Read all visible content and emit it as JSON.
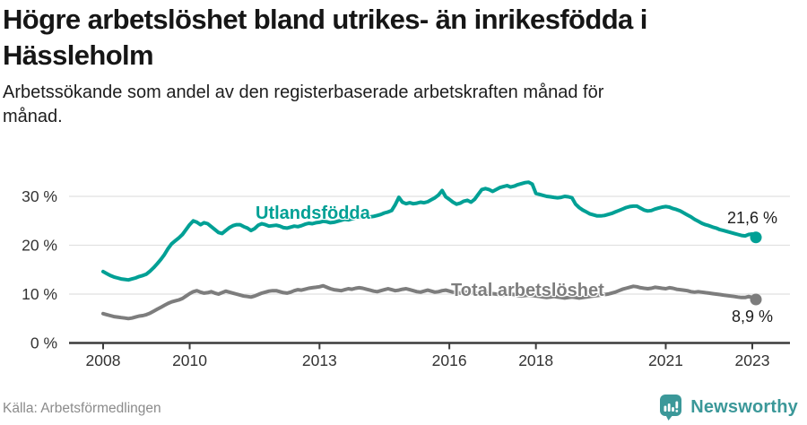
{
  "header": {
    "title": "Högre arbetslöshet bland utrikes- än inrikesfödda i\nHässleholm",
    "subtitle": "Arbetssökande som andel av den registerbaserade arbetskraften månad för\nmånad."
  },
  "footer": {
    "source": "Källa: Arbetsförmedlingen",
    "brand": "Newsworthy",
    "brand_color": "#3b9899"
  },
  "chart_data": {
    "type": "line",
    "title": "Högre arbetslöshet bland utrikes- än inrikesfödda i Hässleholm",
    "unit": "%",
    "x_start": "2008-01",
    "x_end": "2023-02",
    "months_per_point": 1,
    "ylim": [
      0,
      35
    ],
    "grid": "horizontal",
    "y_ticks": [
      {
        "value": 0,
        "label": "0 %"
      },
      {
        "value": 10,
        "label": "10 %"
      },
      {
        "value": 20,
        "label": "20 %"
      },
      {
        "value": 30,
        "label": "30 %"
      }
    ],
    "x_ticks": [
      {
        "month_index": 0,
        "label": "2008"
      },
      {
        "month_index": 24,
        "label": "2010"
      },
      {
        "month_index": 60,
        "label": "2013"
      },
      {
        "month_index": 96,
        "label": "2016"
      },
      {
        "month_index": 120,
        "label": "2018"
      },
      {
        "month_index": 156,
        "label": "2021"
      },
      {
        "month_index": 180,
        "label": "2023"
      }
    ],
    "series": [
      {
        "name": "Utlandsfödda",
        "color": "#00a095",
        "end_label": "21,6 %",
        "end_value": 21.6,
        "values": [
          14.6,
          14.2,
          13.8,
          13.5,
          13.3,
          13.1,
          13.0,
          12.9,
          13.1,
          13.3,
          13.6,
          13.8,
          14.1,
          14.7,
          15.4,
          16.2,
          17.1,
          18.1,
          19.3,
          20.3,
          20.9,
          21.5,
          22.2,
          23.2,
          24.2,
          25.0,
          24.7,
          24.2,
          24.6,
          24.4,
          23.8,
          23.2,
          22.6,
          22.4,
          23.0,
          23.6,
          24.0,
          24.2,
          24.2,
          23.8,
          23.5,
          23.0,
          23.4,
          24.1,
          24.4,
          24.2,
          23.9,
          24.0,
          24.1,
          23.9,
          23.6,
          23.5,
          23.7,
          23.9,
          23.8,
          24.0,
          24.3,
          24.5,
          24.4,
          24.6,
          24.7,
          24.9,
          24.8,
          24.6,
          24.7,
          24.9,
          25.1,
          25.3,
          25.2,
          25.4,
          25.6,
          25.7,
          25.9,
          26.0,
          25.8,
          25.9,
          26.1,
          26.3,
          26.6,
          26.8,
          27.1,
          28.3,
          29.8,
          28.8,
          28.5,
          28.7,
          28.5,
          28.6,
          28.8,
          28.7,
          28.9,
          29.3,
          29.7,
          30.3,
          31.2,
          29.9,
          29.4,
          28.8,
          28.4,
          28.6,
          29.0,
          29.2,
          28.8,
          29.4,
          30.4,
          31.4,
          31.6,
          31.4,
          31.0,
          31.4,
          31.8,
          32.0,
          32.2,
          31.9,
          32.1,
          32.4,
          32.6,
          32.8,
          32.9,
          32.5,
          30.6,
          30.4,
          30.2,
          30.0,
          29.9,
          29.8,
          29.7,
          29.8,
          30.0,
          29.9,
          29.7,
          28.4,
          27.7,
          27.2,
          26.8,
          26.4,
          26.2,
          26.0,
          26.0,
          26.1,
          26.3,
          26.5,
          26.8,
          27.1,
          27.4,
          27.7,
          27.9,
          28.0,
          28.0,
          27.6,
          27.2,
          27.0,
          27.1,
          27.4,
          27.6,
          27.8,
          27.9,
          27.8,
          27.5,
          27.3,
          27.0,
          26.6,
          26.2,
          25.8,
          25.3,
          24.9,
          24.5,
          24.2,
          24.0,
          23.7,
          23.5,
          23.2,
          23.0,
          22.8,
          22.6,
          22.4,
          22.2,
          22.0,
          21.9,
          22.2,
          22.3,
          21.6
        ]
      },
      {
        "name": "Total arbetslöshet",
        "color": "#7d7d7d",
        "end_label": "8,9 %",
        "end_value": 8.9,
        "values": [
          6.0,
          5.8,
          5.6,
          5.4,
          5.3,
          5.2,
          5.1,
          5.0,
          5.1,
          5.3,
          5.5,
          5.6,
          5.8,
          6.1,
          6.5,
          6.9,
          7.3,
          7.7,
          8.1,
          8.4,
          8.6,
          8.8,
          9.1,
          9.6,
          10.1,
          10.5,
          10.7,
          10.4,
          10.2,
          10.3,
          10.5,
          10.2,
          10.0,
          10.3,
          10.6,
          10.4,
          10.2,
          10.0,
          9.8,
          9.6,
          9.5,
          9.4,
          9.6,
          9.9,
          10.2,
          10.4,
          10.6,
          10.7,
          10.7,
          10.5,
          10.3,
          10.2,
          10.4,
          10.7,
          10.9,
          10.8,
          11.0,
          11.2,
          11.3,
          11.4,
          11.5,
          11.7,
          11.4,
          11.1,
          10.9,
          10.8,
          10.7,
          10.9,
          11.1,
          11.0,
          11.2,
          11.3,
          11.2,
          11.0,
          10.8,
          10.6,
          10.5,
          10.7,
          10.9,
          11.1,
          10.9,
          10.7,
          10.8,
          11.0,
          11.1,
          10.9,
          10.7,
          10.5,
          10.4,
          10.6,
          10.8,
          10.6,
          10.4,
          10.5,
          10.7,
          10.8,
          10.6,
          10.4,
          10.3,
          10.2,
          10.3,
          10.4,
          10.3,
          10.2,
          10.1,
          10.2,
          10.3,
          10.2,
          10.1,
          10.0,
          9.9,
          9.8,
          9.9,
          10.0,
          9.9,
          9.7,
          9.6,
          9.7,
          9.8,
          9.7,
          9.6,
          9.5,
          9.4,
          9.3,
          9.4,
          9.5,
          9.4,
          9.3,
          9.2,
          9.3,
          9.4,
          9.3,
          9.2,
          9.3,
          9.4,
          9.5,
          9.6,
          9.7,
          9.8,
          9.9,
          10.0,
          10.2,
          10.4,
          10.7,
          11.0,
          11.2,
          11.4,
          11.6,
          11.5,
          11.3,
          11.2,
          11.1,
          11.2,
          11.4,
          11.3,
          11.2,
          11.1,
          11.3,
          11.2,
          11.0,
          10.9,
          10.8,
          10.7,
          10.5,
          10.4,
          10.5,
          10.4,
          10.3,
          10.2,
          10.1,
          10.0,
          9.9,
          9.8,
          9.7,
          9.6,
          9.5,
          9.4,
          9.3,
          9.3,
          9.5,
          9.3,
          8.9
        ]
      }
    ],
    "style": {
      "grid_color": "#e1e1e1",
      "axis_color": "#3c3c3c",
      "tick_label_color": "#333333"
    }
  }
}
